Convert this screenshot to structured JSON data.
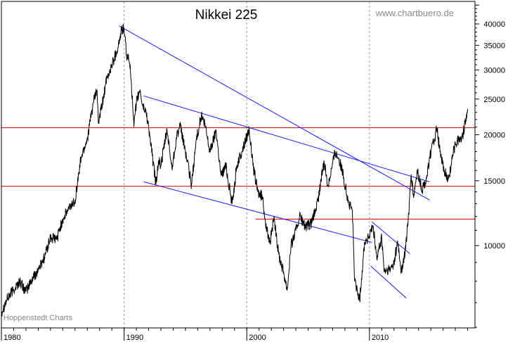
{
  "chart_data": {
    "type": "line",
    "title": "Nikkei 225",
    "watermark": "www.chartbuero.de",
    "credit": "Hoppenstedt Charts",
    "y_scale": "log",
    "ylim": [
      5000,
      45000
    ],
    "xlim": [
      1980,
      2018.6
    ],
    "grid": "vertical dashed at decades",
    "y_ticks": [
      {
        "value": 10000,
        "label": "10000"
      },
      {
        "value": 15000,
        "label": "15000"
      },
      {
        "value": 20000,
        "label": "20000"
      },
      {
        "value": 25000,
        "label": "25000"
      },
      {
        "value": 30000,
        "label": "30000"
      },
      {
        "value": 35000,
        "label": "35000"
      },
      {
        "value": 40000,
        "label": "40000"
      }
    ],
    "x_ticks": [
      {
        "value": 1980,
        "label": "1980"
      },
      {
        "value": 1990,
        "label": "1990"
      },
      {
        "value": 2000,
        "label": "2000"
      },
      {
        "value": 2010,
        "label": "2010"
      }
    ],
    "series": [
      {
        "color": "#000000",
        "points": [
          [
            1980.0,
            6600
          ],
          [
            1980.5,
            7200
          ],
          [
            1981.0,
            7600
          ],
          [
            1981.5,
            8000
          ],
          [
            1982.0,
            7500
          ],
          [
            1982.5,
            8100
          ],
          [
            1983.0,
            8600
          ],
          [
            1983.5,
            9300
          ],
          [
            1984.0,
            10500
          ],
          [
            1984.5,
            10400
          ],
          [
            1985.0,
            11800
          ],
          [
            1985.5,
            12600
          ],
          [
            1986.0,
            13300
          ],
          [
            1986.5,
            17400
          ],
          [
            1987.0,
            19500
          ],
          [
            1987.5,
            24500
          ],
          [
            1987.8,
            26500
          ],
          [
            1987.9,
            21500
          ],
          [
            1988.2,
            24000
          ],
          [
            1988.5,
            27500
          ],
          [
            1988.8,
            29500
          ],
          [
            1989.0,
            31000
          ],
          [
            1989.5,
            34500
          ],
          [
            1989.8,
            38500
          ],
          [
            1989.99,
            38900
          ],
          [
            1990.2,
            33000
          ],
          [
            1990.5,
            31000
          ],
          [
            1990.7,
            24000
          ],
          [
            1990.8,
            21000
          ],
          [
            1991.0,
            24500
          ],
          [
            1991.3,
            26500
          ],
          [
            1991.5,
            24000
          ],
          [
            1991.8,
            23000
          ],
          [
            1992.0,
            21000
          ],
          [
            1992.3,
            17500
          ],
          [
            1992.6,
            14700
          ],
          [
            1992.8,
            17000
          ],
          [
            1993.0,
            16500
          ],
          [
            1993.5,
            20600
          ],
          [
            1993.9,
            16200
          ],
          [
            1994.3,
            20000
          ],
          [
            1994.6,
            21000
          ],
          [
            1995.0,
            18000
          ],
          [
            1995.5,
            14600
          ],
          [
            1995.9,
            19600
          ],
          [
            1996.3,
            22500
          ],
          [
            1996.6,
            21200
          ],
          [
            1997.0,
            18000
          ],
          [
            1997.5,
            20600
          ],
          [
            1997.9,
            15500
          ],
          [
            1998.3,
            16500
          ],
          [
            1998.8,
            13000
          ],
          [
            1999.2,
            16500
          ],
          [
            1999.6,
            18000
          ],
          [
            2000.2,
            20800
          ],
          [
            2000.5,
            16500
          ],
          [
            2000.9,
            14000
          ],
          [
            2001.3,
            13500
          ],
          [
            2001.6,
            11000
          ],
          [
            2001.9,
            10300
          ],
          [
            2002.2,
            11800
          ],
          [
            2002.6,
            9500
          ],
          [
            2003.0,
            8500
          ],
          [
            2003.3,
            7600
          ],
          [
            2003.6,
            10000
          ],
          [
            2004.0,
            11000
          ],
          [
            2004.3,
            12000
          ],
          [
            2004.8,
            11200
          ],
          [
            2005.3,
            11500
          ],
          [
            2005.8,
            13200
          ],
          [
            2006.3,
            17000
          ],
          [
            2006.6,
            14500
          ],
          [
            2007.2,
            18000
          ],
          [
            2007.5,
            17300
          ],
          [
            2007.9,
            15300
          ],
          [
            2008.3,
            13000
          ],
          [
            2008.6,
            12500
          ],
          [
            2008.8,
            8000
          ],
          [
            2009.2,
            7100
          ],
          [
            2009.6,
            10200
          ],
          [
            2010.0,
            10600
          ],
          [
            2010.3,
            11300
          ],
          [
            2010.6,
            9200
          ],
          [
            2011.0,
            10500
          ],
          [
            2011.2,
            8500
          ],
          [
            2011.7,
            8600
          ],
          [
            2012.0,
            9000
          ],
          [
            2012.3,
            10200
          ],
          [
            2012.6,
            8500
          ],
          [
            2012.9,
            9500
          ],
          [
            2013.2,
            12200
          ],
          [
            2013.4,
            15600
          ],
          [
            2013.6,
            13500
          ],
          [
            2013.9,
            15900
          ],
          [
            2014.3,
            14100
          ],
          [
            2014.7,
            15500
          ],
          [
            2014.9,
            17400
          ],
          [
            2015.3,
            19500
          ],
          [
            2015.5,
            20800
          ],
          [
            2015.8,
            17400
          ],
          [
            2016.1,
            16000
          ],
          [
            2016.4,
            15000
          ],
          [
            2016.8,
            17500
          ],
          [
            2017.0,
            19000
          ],
          [
            2017.3,
            19500
          ],
          [
            2017.6,
            19800
          ],
          [
            2017.9,
            22700
          ],
          [
            2018.0,
            23500
          ]
        ]
      }
    ],
    "horizontal_lines": [
      {
        "y": 20900,
        "x1": 1980,
        "x2": 2018.6,
        "color": "#dd0000"
      },
      {
        "y": 14500,
        "x1": 1980,
        "x2": 2018.6,
        "color": "#dd0000"
      },
      {
        "y": 11800,
        "x1": 2000.7,
        "x2": 2018.6,
        "color": "#dd0000"
      }
    ],
    "trend_lines": [
      {
        "x1": 1989.6,
        "y1": 39500,
        "x2": 2014.9,
        "y2": 13300,
        "color": "#1a1aff"
      },
      {
        "x1": 1991.6,
        "y1": 25500,
        "x2": 2014.9,
        "y2": 14900,
        "color": "#1a1aff"
      },
      {
        "x1": 1991.6,
        "y1": 14900,
        "x2": 2010.2,
        "y2": 10200,
        "color": "#1a1aff"
      },
      {
        "x1": 2010.2,
        "y1": 11600,
        "x2": 2013.3,
        "y2": 9500,
        "color": "#1a1aff"
      },
      {
        "x1": 2010.1,
        "y1": 8800,
        "x2": 2013.0,
        "y2": 7200,
        "color": "#1a1aff"
      }
    ]
  }
}
